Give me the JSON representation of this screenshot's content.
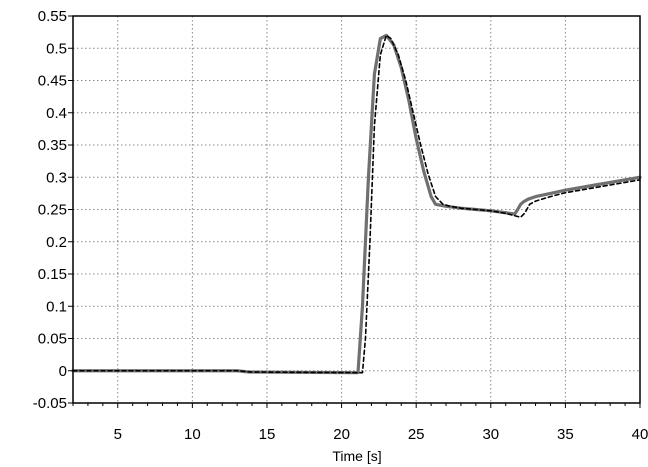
{
  "chart_data": {
    "type": "line",
    "title": "",
    "xlabel": "Time [s]",
    "ylabel": "",
    "xlim": [
      2,
      40
    ],
    "ylim": [
      -0.05,
      0.55
    ],
    "xticks": [
      5,
      10,
      15,
      20,
      25,
      30,
      35,
      40
    ],
    "yticks": [
      -0.05,
      0,
      0.05,
      0.1,
      0.15,
      0.2,
      0.25,
      0.3,
      0.35,
      0.4,
      0.45,
      0.5,
      0.55
    ],
    "ytick_labels": [
      "-0.05",
      "0",
      "0.05",
      "0.1",
      "0.15",
      "0.2",
      "0.25",
      "0.3",
      "0.35",
      "0.4",
      "0.45",
      "0.5",
      "0.55"
    ],
    "grid": true,
    "legend": "none",
    "series": [
      {
        "style": "solid",
        "color": "#707070",
        "x": [
          2,
          13,
          13.8,
          21,
          21.1,
          21.4,
          21.8,
          22.2,
          22.6,
          23.0,
          23.5,
          24.0,
          24.5,
          25.0,
          25.5,
          26.0,
          26.3,
          27.0,
          28.0,
          29.0,
          30.0,
          31.0,
          31.6,
          31.8,
          32.0,
          32.2,
          32.5,
          33.0,
          34.0,
          35.0,
          36.0,
          37.0,
          38.0,
          39.0,
          40.0
        ],
        "y": [
          0.0,
          0.0,
          -0.002,
          -0.003,
          -0.003,
          0.1,
          0.3,
          0.46,
          0.515,
          0.52,
          0.505,
          0.47,
          0.42,
          0.36,
          0.31,
          0.27,
          0.258,
          0.255,
          0.252,
          0.25,
          0.248,
          0.245,
          0.243,
          0.25,
          0.258,
          0.262,
          0.266,
          0.27,
          0.275,
          0.28,
          0.284,
          0.288,
          0.292,
          0.296,
          0.3
        ]
      },
      {
        "style": "dashed",
        "color": "#000000",
        "x": [
          2,
          13,
          14,
          21.4,
          21.6,
          21.9,
          22.2,
          22.6,
          23.0,
          23.3,
          23.8,
          24.3,
          24.8,
          25.3,
          25.8,
          26.3,
          26.8,
          27.3,
          28.0,
          29.0,
          30.0,
          31.0,
          32.0,
          32.3,
          32.6,
          33.0,
          34.0,
          35.0,
          36.0,
          37.0,
          38.0,
          39.0,
          40.0
        ],
        "y": [
          0.0,
          0.0,
          -0.002,
          -0.003,
          0.05,
          0.2,
          0.38,
          0.49,
          0.52,
          0.515,
          0.49,
          0.45,
          0.4,
          0.35,
          0.305,
          0.27,
          0.258,
          0.255,
          0.252,
          0.25,
          0.248,
          0.244,
          0.238,
          0.245,
          0.258,
          0.263,
          0.27,
          0.276,
          0.28,
          0.284,
          0.288,
          0.292,
          0.296
        ]
      }
    ]
  }
}
